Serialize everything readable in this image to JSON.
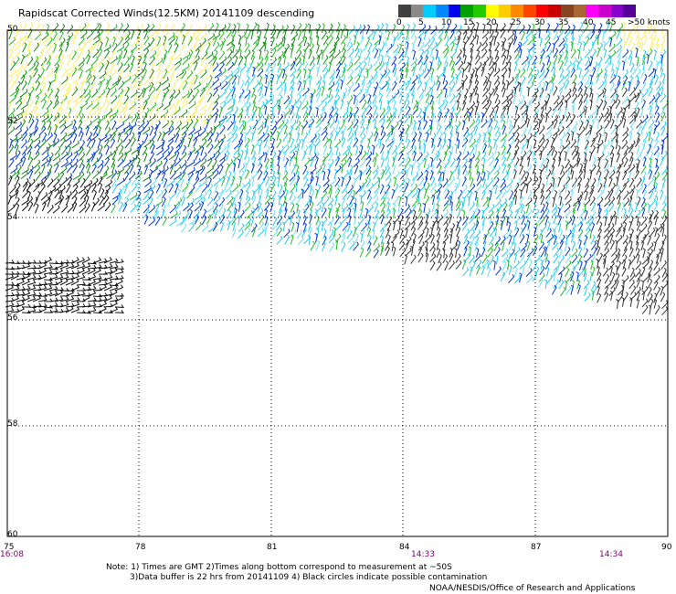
{
  "title": "Rapidscat Corrected Winds(12.5KM) 20141109 descending",
  "legend": {
    "labels": [
      "0",
      "5",
      "10",
      "15",
      "20",
      "25",
      "30",
      "35",
      "40",
      "45",
      ">50 knots"
    ],
    "colors": [
      "#404040",
      "#8a8a8a",
      "#00ccff",
      "#0088ff",
      "#0000ee",
      "#00a000",
      "#22cc00",
      "#ffff00",
      "#ffcc00",
      "#ff8800",
      "#ff4400",
      "#ff0000",
      "#cc0000",
      "#884422",
      "#aa6633",
      "#ff00ff",
      "#cc00cc",
      "#8800cc",
      "#550099"
    ]
  },
  "lat_labels": [
    "50",
    "52",
    "54",
    "56",
    "58",
    "60"
  ],
  "lon_labels": [
    "75",
    "78",
    "81",
    "84",
    "87",
    "90"
  ],
  "times": [
    "16:08",
    "14:33",
    "14:34"
  ],
  "notes": {
    "line1": "Note: 1) Times are GMT 2)Times along bottom correspond to measurement at ~50S",
    "line2": "3)Data buffer is 22 hrs from 20141109 4) Black circles indicate possible contamination"
  },
  "credit": "NOAA/NESDIS/Office of Research and Applications",
  "wind_colors": {
    "light": "#ffee66",
    "green": "#22bb22",
    "darkgreen": "#118811",
    "blue": "#0033dd",
    "cyan": "#22ccee",
    "lightcyan": "#66e0ff",
    "black": "#111111",
    "gray": "#333333"
  }
}
